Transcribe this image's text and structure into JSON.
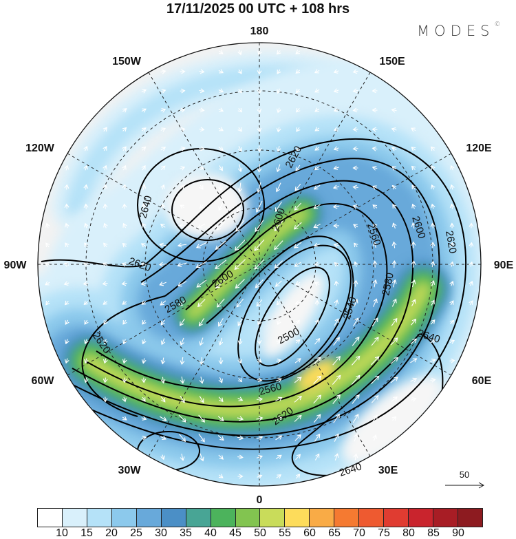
{
  "title": "17/11/2025  00 UTC  + 108 hrs",
  "brand": {
    "name": "MODES",
    "mark": "©"
  },
  "longitude_labels": {
    "n180": "180",
    "e150": "150E",
    "e120": "120E",
    "e90": "90E",
    "e60": "60E",
    "e30": "30E",
    "n0": "0",
    "w30": "30W",
    "w60": "60W",
    "w90": "90W",
    "w120": "120W",
    "w150": "150W"
  },
  "contour_labels": [
    "2640",
    "2620",
    "2620",
    "2580",
    "2600",
    "2600",
    "2620",
    "2560",
    "2600",
    "2620",
    "2580",
    "2540",
    "2500",
    "2640",
    "2560",
    "2620",
    "2640"
  ],
  "vector_reference": {
    "value": "50"
  },
  "colorbar": {
    "colors": [
      "#ffffff",
      "#d9f0fb",
      "#b5e2f8",
      "#8cc9ec",
      "#68a9da",
      "#4b8fc6",
      "#48a595",
      "#4cb35c",
      "#82c450",
      "#c9dc5a",
      "#fddc5b",
      "#f9ab46",
      "#f57a31",
      "#ee5a30",
      "#e03c31",
      "#c9242d",
      "#a81d25",
      "#8d1b20"
    ],
    "ticks": [
      "10",
      "15",
      "20",
      "25",
      "30",
      "35",
      "40",
      "45",
      "50",
      "55",
      "60",
      "65",
      "70",
      "75",
      "80",
      "85",
      "90"
    ]
  }
}
